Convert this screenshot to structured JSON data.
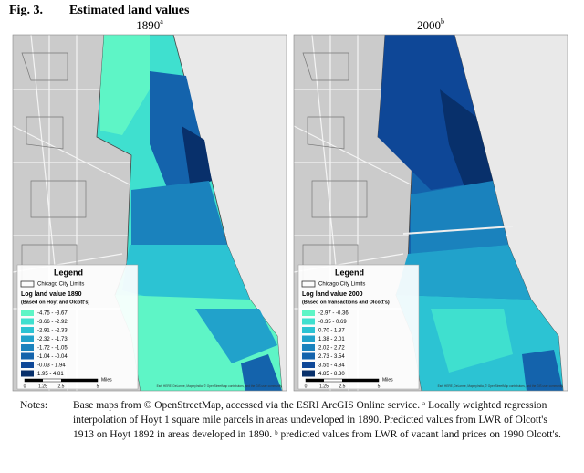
{
  "figure": {
    "label": "Fig. 3.",
    "title": "Estimated land values"
  },
  "maps": [
    {
      "title": "1890",
      "sup": "a",
      "legend": "Legend",
      "limits": "Chicago City Limits",
      "legend_title": "Log land value 1890",
      "basis": "(Based on Hoyt and Olcott's)",
      "classes": [
        {
          "label": "-4.75 - -3.67",
          "color": "#5ef5c6"
        },
        {
          "label": "-3.66 - -2.92",
          "color": "#3fe0cf"
        },
        {
          "label": "-2.91 - -2.33",
          "color": "#2cc3d3"
        },
        {
          "label": "-2.32 - -1.73",
          "color": "#21a2cb"
        },
        {
          "label": "-1.72 - -1.05",
          "color": "#1a82bd"
        },
        {
          "label": "-1.04 - -0.04",
          "color": "#1463ac"
        },
        {
          "label": "-0.03 - 1.94",
          "color": "#0e4797"
        },
        {
          "label": "1.95 - 4.81",
          "color": "#08306b"
        }
      ],
      "scale": [
        "0",
        "1.25",
        "2.5",
        "5"
      ],
      "scale_unit": "Miles",
      "credit": "Esri, HERE, DeLorme, MapmyIndia, © OpenStreetMap contributors, and the GIS user community"
    },
    {
      "title": "2000",
      "sup": "b",
      "legend": "Legend",
      "limits": "Chicago City Limits",
      "legend_title": "Log land value 2000",
      "basis": "(Based on transactions and Olcott's)",
      "classes": [
        {
          "label": "-2.97 - -0.36",
          "color": "#5ef5c6"
        },
        {
          "label": "-0.35 - 0.69",
          "color": "#3fe0cf"
        },
        {
          "label": "0.70 - 1.37",
          "color": "#2cc3d3"
        },
        {
          "label": "1.38 - 2.01",
          "color": "#21a2cb"
        },
        {
          "label": "2.02 - 2.72",
          "color": "#1a82bd"
        },
        {
          "label": "2.73 - 3.54",
          "color": "#1463ac"
        },
        {
          "label": "3.55 - 4.84",
          "color": "#0e4797"
        },
        {
          "label": "4.85 - 8.30",
          "color": "#08306b"
        }
      ],
      "scale": [
        "0",
        "1.25",
        "2.5",
        "5"
      ],
      "scale_unit": "Miles",
      "credit": "Esri, HERE, DeLorme, MapmyIndia, © OpenStreetMap contributors, and the GIS user community"
    }
  ],
  "notes": {
    "label": "Notes:",
    "text": "Base maps from © OpenStreetMap, accessed via the ESRI ArcGIS Online service. ᵃ Locally weighted regression interpolation of Hoyt 1 square mile parcels in areas undeveloped in 1890. Predicted values from LWR of Olcott's 1913 on Hoyt 1892 in areas developed in 1890. ᵇ predicted values from LWR of vacant land prices on 1990 Olcott's."
  }
}
